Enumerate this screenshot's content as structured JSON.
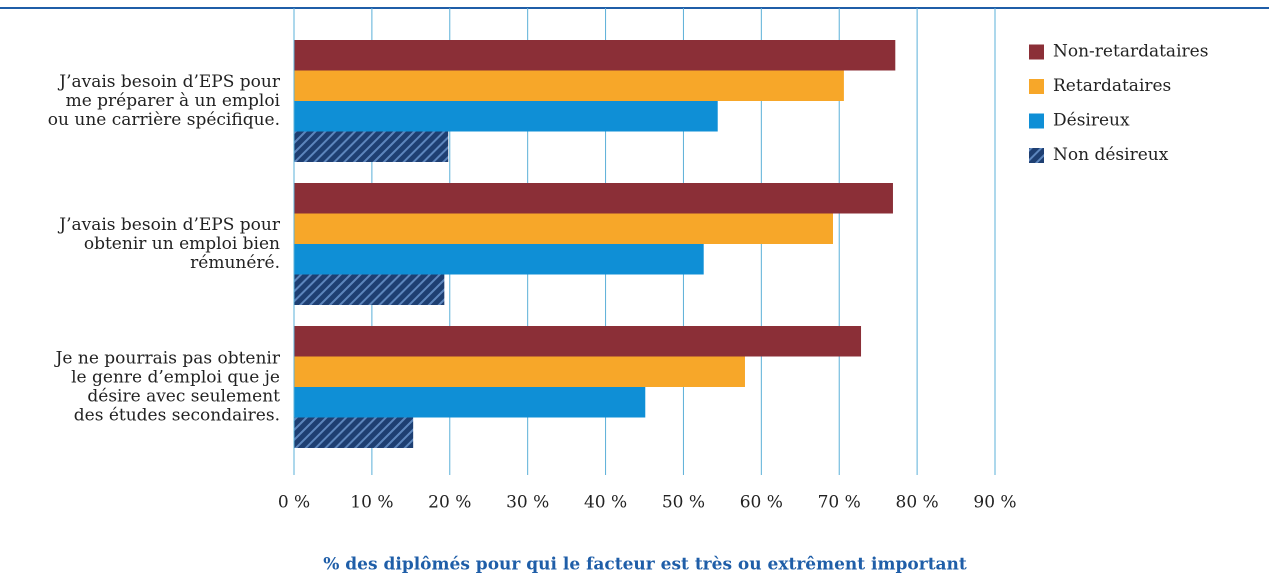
{
  "chart_data": {
    "type": "barh",
    "x_label": "% des diplômés pour qui le facteur est très ou extrêment important",
    "categories": [
      [
        "J’avais besoin d’EPS pour",
        "me préparer à un emploi",
        "ou une carrière spécifique."
      ],
      [
        "J’avais besoin d’EPS pour",
        "obtenir un emploi bien",
        "rémunéré."
      ],
      [
        "Je ne pourrais pas obtenir",
        "le genre d’emploi que je",
        "désire avec seulement",
        "des études secondaires."
      ]
    ],
    "series": [
      {
        "name": "Non-retardataires",
        "color": "#8b2f37",
        "values": [
          77.2,
          76.9,
          72.8
        ]
      },
      {
        "name": "Retardataires",
        "color": "#f7a729",
        "values": [
          70.6,
          69.2,
          57.9
        ]
      },
      {
        "name": "Désireux",
        "color": "#0f8fd6",
        "values": [
          54.4,
          52.6,
          45.1
        ]
      },
      {
        "name": "Non désireux",
        "color": "#1e3f72",
        "pattern": "hatch",
        "values": [
          19.8,
          19.3,
          15.3
        ]
      }
    ],
    "xlim": [
      0,
      90
    ],
    "xticks": [
      {
        "value": 0,
        "label": "0 %"
      },
      {
        "value": 10,
        "label": "10 %"
      },
      {
        "value": 20,
        "label": "20 %"
      },
      {
        "value": 30,
        "label": "30 %"
      },
      {
        "value": 40,
        "label": "40 %"
      },
      {
        "value": 50,
        "label": "50 %"
      },
      {
        "value": 60,
        "label": "60 %"
      },
      {
        "value": 70,
        "label": "70 %"
      },
      {
        "value": 80,
        "label": "80 %"
      },
      {
        "value": 90,
        "label": "90 %"
      }
    ],
    "grid": true,
    "legend": "right"
  }
}
